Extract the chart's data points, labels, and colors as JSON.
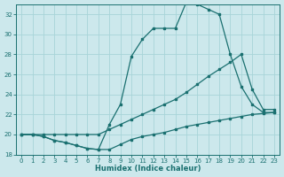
{
  "xlabel": "Humidex (Indice chaleur)",
  "bg_color": "#cce8ec",
  "grid_color": "#a8d4d8",
  "line_color": "#1a7070",
  "spine_color": "#1a7070",
  "xlim": [
    -0.5,
    23.5
  ],
  "ylim": [
    18,
    33
  ],
  "xticks": [
    0,
    1,
    2,
    3,
    4,
    5,
    6,
    7,
    8,
    9,
    10,
    11,
    12,
    13,
    14,
    15,
    16,
    17,
    18,
    19,
    20,
    21,
    22,
    23
  ],
  "yticks": [
    18,
    20,
    22,
    24,
    26,
    28,
    30,
    32
  ],
  "line1_x": [
    0,
    1,
    2,
    3,
    4,
    5,
    6,
    7,
    8,
    9,
    10,
    11,
    12,
    13,
    14,
    15,
    16,
    17,
    18,
    19,
    20,
    21,
    22,
    23
  ],
  "line1_y": [
    20,
    20,
    19.8,
    19.4,
    19.2,
    18.9,
    18.6,
    18.5,
    18.5,
    19.0,
    19.5,
    19.8,
    20.0,
    20.2,
    20.5,
    20.8,
    21.0,
    21.2,
    21.4,
    21.6,
    21.8,
    22.0,
    22.1,
    22.2
  ],
  "line2_x": [
    0,
    1,
    2,
    3,
    4,
    5,
    6,
    7,
    8,
    9,
    10,
    11,
    12,
    13,
    14,
    15,
    16,
    17,
    18,
    19,
    20,
    21,
    22,
    23
  ],
  "line2_y": [
    20,
    20,
    20,
    20,
    20,
    20,
    20,
    20,
    20.5,
    21.0,
    21.5,
    22.0,
    22.5,
    23.0,
    23.5,
    24.2,
    25.0,
    25.8,
    26.5,
    27.2,
    28.0,
    24.5,
    22.5,
    22.5
  ],
  "line3_x": [
    0,
    1,
    2,
    3,
    4,
    5,
    6,
    7,
    8,
    9,
    10,
    11,
    12,
    13,
    14,
    15,
    16,
    17,
    18,
    19,
    20,
    21,
    22,
    23
  ],
  "line3_y": [
    20,
    20,
    19.8,
    19.4,
    19.2,
    18.9,
    18.6,
    18.5,
    21.0,
    23.0,
    27.8,
    29.5,
    30.6,
    30.6,
    30.6,
    33.2,
    33.0,
    32.5,
    32.0,
    28.0,
    24.8,
    23.0,
    22.2,
    22.2
  ]
}
